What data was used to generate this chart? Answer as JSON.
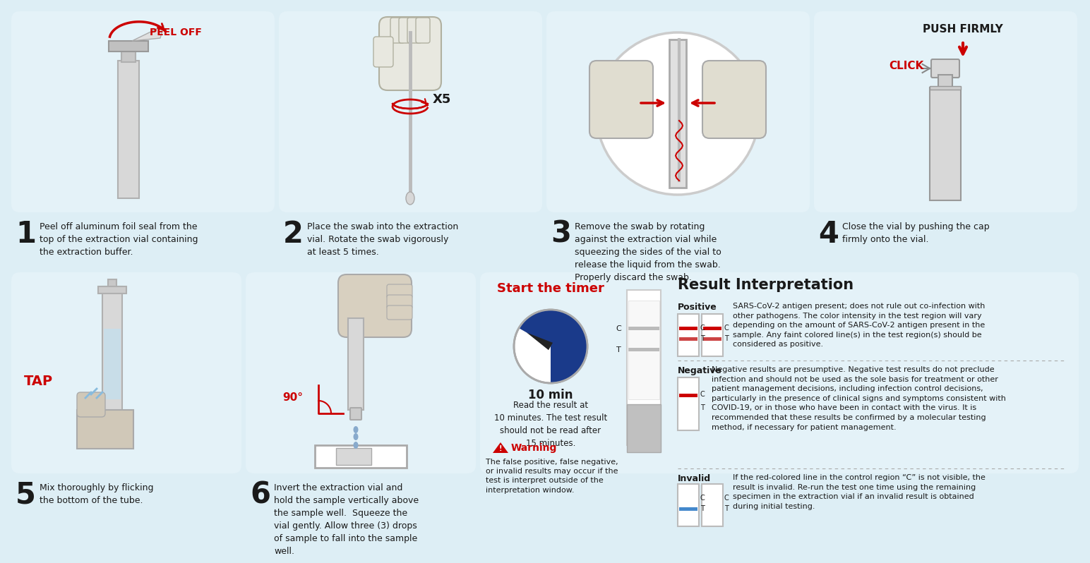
{
  "bg_color": "#ddeef5",
  "panel_bg": "#e4f2f8",
  "white": "#ffffff",
  "red": "#cc0000",
  "blue": "#1a3a8a",
  "dark": "#1a1a1a",
  "gray": "#888888",
  "light_gray": "#d0d0d0",
  "step1_text": "Peel off aluminum foil seal from the\ntop of the extraction vial containing\nthe extraction buffer.",
  "step2_text": "Place the swab into the extraction\nvial. Rotate the swab vigorously\nat least 5 times.",
  "step3_text": "Remove the swab by rotating\nagainst the extraction vial while\nsqueezing the sides of the vial to\nrelease the liquid from the swab.\nProperly discard the swab.",
  "step4_text": "Close the vial by pushing the cap\nfirmly onto the vial.",
  "step5_text": "Mix thoroughly by flicking\nthe bottom of the tube.",
  "step6_text": "Invert the extraction vial and\nhold the sample vertically above\nthe sample well.  Squeeze the\nvial gently. Allow three (3) drops\nof sample to fall into the sample\nwell.",
  "timer_title": "Start the timer",
  "timer_text": "Read the result at\n10 minutes. The test result\nshould not be read after\n15 minutes.",
  "warning_text": "The false positive, false negative,\nor invalid results may occur if the\ntest is interpret outside of the\ninterpretation window.",
  "timer_min": "10 min",
  "result_title": "Result Interpretation",
  "positive_label": "Positive",
  "positive_desc": "SARS-CoV-2 antigen present; does not rule out co-infection with\nother pathogens. The color intensity in the test region will vary\ndepending on the amount of SARS-CoV-2 antigen present in the\nsample. Any faint colored line(s) in the test region(s) should be\nconsidered as positive.",
  "negative_label": "Negative",
  "negative_desc": "Negative results are presumptive. Negative test results do not preclude\ninfection and should not be used as the sole basis for treatment or other\npatient management decisions, including infection control decisions,\nparticularly in the presence of clinical signs and symptoms consistent with\nCOVID-19, or in those who have been in contact with the virus. It is\nrecommended that these results be confirmed by a molecular testing\nmethod, if necessary for patient management.",
  "invalid_label": "Invalid",
  "invalid_desc": "If the red-colored line in the control region “C” is not visible, the\nresult is invalid. Re-run the test one time using the remaining\nspecimen in the extraction vial if an invalid result is obtained\nduring initial testing.",
  "peel_off": "PEEL OFF",
  "x5": "X5",
  "push_firmly": "PUSH FIRMLY",
  "click": "CLICK",
  "tap": "TAP",
  "degree": "90°"
}
